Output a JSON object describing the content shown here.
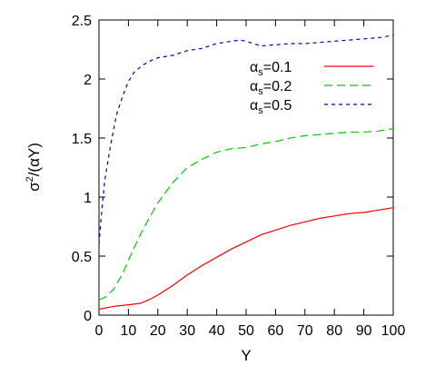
{
  "chart_data": {
    "type": "line",
    "xlabel": "Y",
    "ylabel_main": "σ",
    "ylabel_sup": "2",
    "ylabel_rest": "/(αY)",
    "xlim": [
      0,
      100
    ],
    "ylim": [
      0,
      2.5
    ],
    "xticks": [
      0,
      10,
      20,
      30,
      40,
      50,
      60,
      70,
      80,
      90,
      100
    ],
    "yticks": [
      0,
      0.5,
      1,
      1.5,
      2,
      2.5
    ],
    "ytick_labels": [
      "0",
      "0.5",
      "1",
      "1.5",
      "2",
      "2.5"
    ],
    "grid": false,
    "legend_position": "top-right",
    "series": [
      {
        "legend_prefix": "α",
        "legend_sub": "s",
        "legend_suffix": "=0.1",
        "color": "#ff0000",
        "dash": "solid",
        "x": [
          0,
          5,
          10,
          14,
          17,
          20,
          25,
          30,
          35,
          40,
          45,
          50,
          55,
          60,
          65,
          70,
          75,
          80,
          85,
          90,
          95,
          100
        ],
        "y": [
          0.05,
          0.075,
          0.088,
          0.1,
          0.13,
          0.17,
          0.25,
          0.34,
          0.42,
          0.49,
          0.56,
          0.62,
          0.68,
          0.72,
          0.76,
          0.79,
          0.82,
          0.84,
          0.86,
          0.87,
          0.89,
          0.91
        ]
      },
      {
        "legend_prefix": "α",
        "legend_sub": "s",
        "legend_suffix": "=0.2",
        "color": "#00cc00",
        "dash": "long-dash",
        "x": [
          0,
          2,
          5,
          8,
          11,
          14,
          17,
          20,
          25,
          30,
          35,
          40,
          45,
          50,
          55,
          60,
          65,
          70,
          75,
          80,
          85,
          90,
          95,
          100
        ],
        "y": [
          0.13,
          0.15,
          0.22,
          0.35,
          0.52,
          0.68,
          0.82,
          0.95,
          1.12,
          1.25,
          1.32,
          1.38,
          1.41,
          1.42,
          1.45,
          1.47,
          1.5,
          1.52,
          1.53,
          1.54,
          1.55,
          1.55,
          1.56,
          1.58
        ]
      },
      {
        "legend_prefix": "α",
        "legend_sub": "s",
        "legend_suffix": "=0.5",
        "color": "#0000cc",
        "dash": "short-dash",
        "x": [
          0,
          1,
          2,
          4,
          6,
          8,
          10,
          12,
          15,
          18,
          20,
          25,
          30,
          35,
          40,
          45,
          48,
          50,
          55,
          60,
          65,
          70,
          75,
          80,
          85,
          90,
          95,
          100
        ],
        "y": [
          0.6,
          0.9,
          1.15,
          1.45,
          1.7,
          1.85,
          1.98,
          2.06,
          2.12,
          2.16,
          2.18,
          2.2,
          2.24,
          2.26,
          2.3,
          2.32,
          2.33,
          2.32,
          2.28,
          2.29,
          2.3,
          2.3,
          2.31,
          2.32,
          2.33,
          2.34,
          2.35,
          2.37
        ]
      }
    ]
  }
}
